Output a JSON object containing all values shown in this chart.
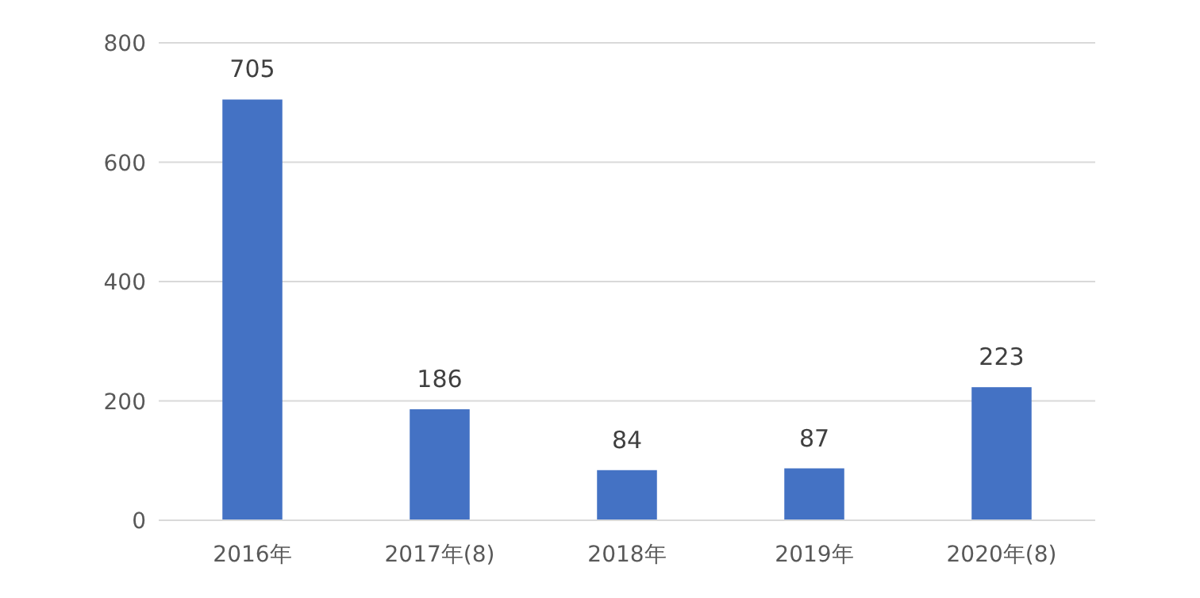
{
  "chart_data": {
    "type": "bar",
    "categories": [
      "2016年",
      "2017年(8)",
      "2018年",
      "2019年",
      "2020年(8)"
    ],
    "values": [
      705,
      186,
      84,
      87,
      223
    ],
    "color": "#4472c4",
    "data_labels": true,
    "grid": "y",
    "ylim": [
      0,
      800
    ],
    "yticks": [
      0,
      200,
      400,
      600,
      800
    ]
  }
}
